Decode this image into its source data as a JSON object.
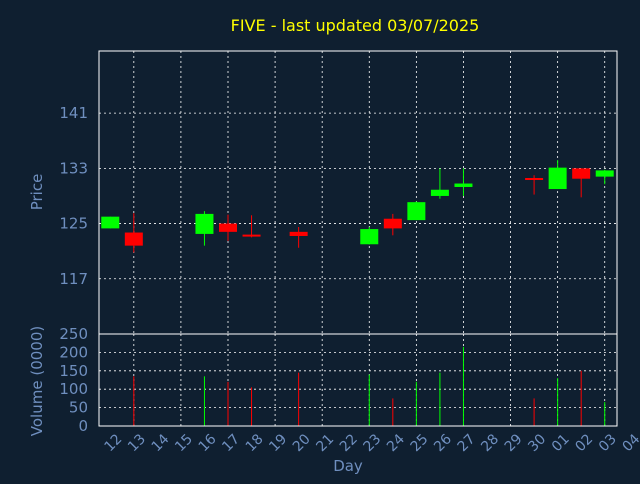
{
  "chart_data": {
    "type": "candlestick",
    "title": "FIVE - last updated 03/07/2025",
    "price_panel": {
      "ylabel": "Price",
      "ylim": [
        109,
        150
      ],
      "yticks": [
        117,
        125,
        133,
        141
      ],
      "grid": true
    },
    "volume_panel": {
      "ylabel": "Volume (0000)",
      "ylim": [
        0,
        250
      ],
      "yticks": [
        0,
        50,
        100,
        150,
        200,
        250
      ],
      "grid": true
    },
    "xlabel": "Day",
    "x_ticks": [
      "12",
      "13",
      "14",
      "15",
      "16",
      "17",
      "18",
      "19",
      "20",
      "21",
      "22",
      "23",
      "24",
      "25",
      "26",
      "27",
      "28",
      "29",
      "30",
      "01",
      "02",
      "03",
      "04"
    ],
    "candles": [
      {
        "day": "12",
        "open": 124.3,
        "high": 126.0,
        "low": 124.3,
        "close": 126.0,
        "volume": 0
      },
      {
        "day": "13",
        "open": 123.7,
        "high": 126.5,
        "low": 120.8,
        "close": 121.8,
        "volume": 135
      },
      {
        "day": "16",
        "open": 123.5,
        "high": 126.8,
        "low": 121.8,
        "close": 126.4,
        "volume": 135
      },
      {
        "day": "17",
        "open": 125.0,
        "high": 126.3,
        "low": 122.5,
        "close": 123.8,
        "volume": 120
      },
      {
        "day": "18",
        "open": 123.4,
        "high": 126.2,
        "low": 123.0,
        "close": 123.2,
        "volume": 105
      },
      {
        "day": "20",
        "open": 123.8,
        "high": 124.5,
        "low": 121.5,
        "close": 123.2,
        "volume": 145
      },
      {
        "day": "23",
        "open": 122.0,
        "high": 124.5,
        "low": 122.0,
        "close": 124.2,
        "volume": 140
      },
      {
        "day": "24",
        "open": 125.7,
        "high": 126.4,
        "low": 123.3,
        "close": 124.3,
        "volume": 75
      },
      {
        "day": "25",
        "open": 125.5,
        "high": 128.2,
        "low": 125.5,
        "close": 128.1,
        "volume": 120
      },
      {
        "day": "26",
        "open": 129.0,
        "high": 133.0,
        "low": 128.6,
        "close": 129.9,
        "volume": 145
      },
      {
        "day": "27",
        "open": 130.3,
        "high": 133.0,
        "low": 129.0,
        "close": 130.8,
        "volume": 215
      },
      {
        "day": "30",
        "open": 131.6,
        "high": 132.0,
        "low": 129.2,
        "close": 131.4,
        "volume": 75
      },
      {
        "day": "01",
        "open": 130.0,
        "high": 134.2,
        "low": 130.0,
        "close": 133.1,
        "volume": 130
      },
      {
        "day": "02",
        "open": 133.0,
        "high": 133.0,
        "low": 128.8,
        "close": 131.5,
        "volume": 150
      },
      {
        "day": "03",
        "open": 131.8,
        "high": 132.8,
        "low": 130.7,
        "close": 132.7,
        "volume": 65
      }
    ],
    "colors": {
      "background": "#0f1f30",
      "plot_border": "#ffffff",
      "grid": "#ffffff",
      "title": "#ffff00",
      "axis_text": "#6f8fbf",
      "up": "#00ff00",
      "down": "#ff0000"
    }
  }
}
